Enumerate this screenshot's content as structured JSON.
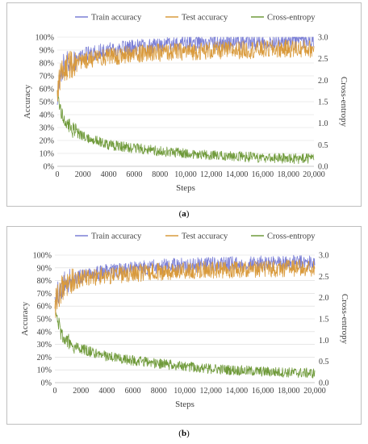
{
  "captions": [
    {
      "open": "(",
      "letter": "a",
      "close": ")"
    },
    {
      "open": "(",
      "letter": "b",
      "close": ")"
    }
  ],
  "colors": {
    "train": "#7b7fd6",
    "test": "#d99a3c",
    "xent": "#6f9a3a",
    "axis_text": "#404040",
    "border": "#bfbfbf"
  },
  "chart_data": [
    {
      "type": "line",
      "xlabel": "Steps",
      "ylabel": "Accuracy",
      "y2label": "Cross-entropy",
      "xlim": [
        0,
        20000
      ],
      "ylim": [
        0,
        100
      ],
      "y2lim": [
        0,
        3.0
      ],
      "x_ticks": [
        "0",
        "2000",
        "4000",
        "6000",
        "8000",
        "10,000",
        "12,000",
        "14,000",
        "16,000",
        "18,000",
        "20,000"
      ],
      "y_ticks": [
        "0%",
        "10%",
        "20%",
        "30%",
        "40%",
        "50%",
        "60%",
        "70%",
        "80%",
        "90%",
        "100%"
      ],
      "y2_ticks": [
        "0.0",
        "0.5",
        "1.0",
        "1.5",
        "2.0",
        "2.5",
        "3.0"
      ],
      "legend_position": "top",
      "series": [
        {
          "name": "Train accuracy",
          "axis": "left",
          "x": [
            0,
            100,
            300,
            500,
            800,
            1200,
            2000,
            3000,
            4000,
            6000,
            8000,
            10000,
            12000,
            14000,
            16000,
            18000,
            20000
          ],
          "y": [
            55,
            66,
            74,
            78,
            81,
            83,
            86,
            88,
            90,
            92,
            94,
            95,
            95.5,
            96,
            96.5,
            97,
            97.5
          ]
        },
        {
          "name": "Test accuracy",
          "axis": "left",
          "x": [
            0,
            100,
            300,
            500,
            800,
            1200,
            2000,
            3000,
            4000,
            6000,
            8000,
            10000,
            12000,
            14000,
            16000,
            18000,
            20000
          ],
          "y": [
            55,
            64,
            70,
            74,
            77,
            79,
            82,
            84,
            85,
            87,
            88,
            89,
            89.5,
            90,
            90.5,
            91,
            91
          ]
        },
        {
          "name": "Cross-entropy",
          "axis": "right",
          "x": [
            0,
            100,
            300,
            500,
            800,
            1200,
            2000,
            3000,
            4000,
            6000,
            8000,
            10000,
            12000,
            14000,
            16000,
            18000,
            20000
          ],
          "y": [
            1.75,
            1.55,
            1.3,
            1.1,
            0.95,
            0.85,
            0.7,
            0.6,
            0.5,
            0.42,
            0.35,
            0.3,
            0.26,
            0.23,
            0.2,
            0.18,
            0.17
          ]
        }
      ]
    },
    {
      "type": "line",
      "xlabel": "Steps",
      "ylabel": "Accuracy",
      "y2label": "Cross-entropy",
      "xlim": [
        0,
        20000
      ],
      "ylim": [
        0,
        100
      ],
      "y2lim": [
        0,
        3.0
      ],
      "x_ticks": [
        "0",
        "2000",
        "4000",
        "6000",
        "8000",
        "10,000",
        "12,000",
        "14,000",
        "16,000",
        "18,000",
        "20,000"
      ],
      "y_ticks": [
        "0%",
        "10%",
        "20%",
        "30%",
        "40%",
        "50%",
        "60%",
        "70%",
        "80%",
        "90%",
        "100%"
      ],
      "y2_ticks": [
        "0.0",
        "0.5",
        "1.0",
        "1.5",
        "2.0",
        "2.5",
        "3.0"
      ],
      "legend_position": "top",
      "series": [
        {
          "name": "Train accuracy",
          "axis": "left",
          "x": [
            0,
            100,
            300,
            500,
            800,
            1200,
            2000,
            3000,
            4000,
            6000,
            8000,
            10000,
            12000,
            14000,
            16000,
            18000,
            20000
          ],
          "y": [
            58,
            66,
            72,
            75,
            78,
            80,
            83,
            85,
            87,
            89,
            91,
            92,
            92.5,
            93,
            93.5,
            94,
            94
          ]
        },
        {
          "name": "Test accuracy",
          "axis": "left",
          "x": [
            0,
            100,
            300,
            500,
            800,
            1200,
            2000,
            3000,
            4000,
            6000,
            8000,
            10000,
            12000,
            14000,
            16000,
            18000,
            20000
          ],
          "y": [
            57,
            64,
            70,
            73,
            76,
            78,
            81,
            83,
            84,
            86,
            87,
            88,
            88.5,
            89,
            89,
            89.5,
            90
          ]
        },
        {
          "name": "Cross-entropy",
          "axis": "right",
          "x": [
            0,
            100,
            300,
            500,
            800,
            1200,
            2000,
            3000,
            4000,
            6000,
            8000,
            10000,
            12000,
            14000,
            16000,
            18000,
            20000
          ],
          "y": [
            1.95,
            1.6,
            1.35,
            1.15,
            1.02,
            0.92,
            0.8,
            0.7,
            0.62,
            0.52,
            0.45,
            0.38,
            0.33,
            0.29,
            0.26,
            0.24,
            0.22
          ]
        }
      ]
    }
  ]
}
